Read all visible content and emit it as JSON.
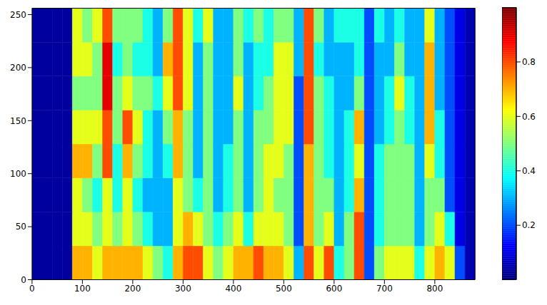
{
  "chart_data": {
    "type": "heatmap",
    "x_edges": [
      0,
      20,
      40,
      60,
      80,
      100,
      120,
      140,
      160,
      180,
      200,
      220,
      240,
      260,
      280,
      300,
      320,
      340,
      360,
      380,
      400,
      420,
      440,
      460,
      480,
      500,
      520,
      540,
      560,
      580,
      600,
      620,
      640,
      660,
      680,
      700,
      720,
      740,
      760,
      780,
      800,
      820,
      840,
      860,
      880
    ],
    "y_edges": [
      0,
      32,
      64,
      96,
      128,
      160,
      192,
      224,
      256
    ],
    "z": [
      [
        0.03,
        0.03,
        0.03,
        0.03,
        0.7,
        0.7,
        0.6,
        0.7,
        0.7,
        0.7,
        0.7,
        0.6,
        0.5,
        0.4,
        0.7,
        0.8,
        0.8,
        0.6,
        0.5,
        0.6,
        0.7,
        0.7,
        0.8,
        0.7,
        0.7,
        0.6,
        0.3,
        0.8,
        0.6,
        0.8,
        0.4,
        0.5,
        0.8,
        0.2,
        0.5,
        0.6,
        0.6,
        0.6,
        0.4,
        0.6,
        0.7,
        0.6,
        0.2,
        0.05
      ],
      [
        0.03,
        0.03,
        0.03,
        0.03,
        0.6,
        0.6,
        0.5,
        0.6,
        0.5,
        0.6,
        0.5,
        0.4,
        0.3,
        0.3,
        0.6,
        0.7,
        0.6,
        0.5,
        0.4,
        0.5,
        0.6,
        0.4,
        0.6,
        0.6,
        0.6,
        0.5,
        0.2,
        0.7,
        0.5,
        0.6,
        0.3,
        0.5,
        0.8,
        0.2,
        0.4,
        0.5,
        0.5,
        0.5,
        0.3,
        0.5,
        0.6,
        0.4,
        0.1,
        0.05
      ],
      [
        0.03,
        0.03,
        0.03,
        0.03,
        0.6,
        0.5,
        0.4,
        0.6,
        0.4,
        0.6,
        0.4,
        0.3,
        0.3,
        0.3,
        0.6,
        0.5,
        0.4,
        0.5,
        0.3,
        0.4,
        0.5,
        0.3,
        0.5,
        0.6,
        0.5,
        0.5,
        0.2,
        0.7,
        0.5,
        0.5,
        0.3,
        0.4,
        0.7,
        0.2,
        0.4,
        0.5,
        0.5,
        0.5,
        0.3,
        0.5,
        0.5,
        0.2,
        0.1,
        0.05
      ],
      [
        0.03,
        0.03,
        0.03,
        0.03,
        0.7,
        0.7,
        0.5,
        0.8,
        0.4,
        0.7,
        0.5,
        0.4,
        0.3,
        0.4,
        0.7,
        0.5,
        0.3,
        0.5,
        0.3,
        0.4,
        0.5,
        0.3,
        0.5,
        0.6,
        0.6,
        0.5,
        0.2,
        0.7,
        0.5,
        0.4,
        0.3,
        0.4,
        0.6,
        0.2,
        0.4,
        0.5,
        0.5,
        0.5,
        0.3,
        0.6,
        0.4,
        0.2,
        0.1,
        0.05
      ],
      [
        0.03,
        0.03,
        0.03,
        0.03,
        0.6,
        0.6,
        0.6,
        0.8,
        0.5,
        0.8,
        0.6,
        0.4,
        0.3,
        0.5,
        0.7,
        0.5,
        0.3,
        0.5,
        0.3,
        0.3,
        0.5,
        0.3,
        0.5,
        0.5,
        0.6,
        0.6,
        0.2,
        0.8,
        0.5,
        0.4,
        0.3,
        0.4,
        0.7,
        0.2,
        0.3,
        0.4,
        0.5,
        0.4,
        0.3,
        0.7,
        0.4,
        0.2,
        0.1,
        0.05
      ],
      [
        0.03,
        0.03,
        0.03,
        0.03,
        0.5,
        0.5,
        0.5,
        0.9,
        0.5,
        0.6,
        0.5,
        0.5,
        0.4,
        0.6,
        0.8,
        0.6,
        0.3,
        0.5,
        0.3,
        0.3,
        0.6,
        0.3,
        0.4,
        0.5,
        0.6,
        0.6,
        0.2,
        0.8,
        0.5,
        0.4,
        0.3,
        0.3,
        0.5,
        0.2,
        0.3,
        0.4,
        0.6,
        0.4,
        0.3,
        0.7,
        0.3,
        0.2,
        0.1,
        0.05
      ],
      [
        0.03,
        0.03,
        0.03,
        0.03,
        0.6,
        0.6,
        0.5,
        0.9,
        0.4,
        0.5,
        0.4,
        0.4,
        0.3,
        0.7,
        0.8,
        0.6,
        0.3,
        0.5,
        0.3,
        0.3,
        0.5,
        0.3,
        0.4,
        0.4,
        0.6,
        0.6,
        0.3,
        0.8,
        0.4,
        0.3,
        0.3,
        0.3,
        0.4,
        0.2,
        0.3,
        0.3,
        0.5,
        0.3,
        0.3,
        0.7,
        0.3,
        0.2,
        0.1,
        0.05
      ],
      [
        0.03,
        0.03,
        0.03,
        0.03,
        0.6,
        0.5,
        0.6,
        0.8,
        0.5,
        0.5,
        0.5,
        0.4,
        0.3,
        0.5,
        0.8,
        0.6,
        0.4,
        0.6,
        0.3,
        0.3,
        0.5,
        0.4,
        0.5,
        0.4,
        0.5,
        0.5,
        0.3,
        0.8,
        0.5,
        0.3,
        0.4,
        0.4,
        0.4,
        0.2,
        0.4,
        0.3,
        0.4,
        0.3,
        0.3,
        0.6,
        0.3,
        0.2,
        0.1,
        0.05
      ]
    ],
    "xlim": [
      0,
      880
    ],
    "xticks": [
      0,
      100,
      200,
      300,
      400,
      500,
      600,
      700,
      800
    ],
    "ylim": [
      0,
      256
    ],
    "yticks": [
      0,
      50,
      100,
      150,
      200,
      250
    ],
    "colorbar": {
      "range": [
        0,
        1
      ],
      "ticks": [
        0.2,
        0.4,
        0.6,
        0.8
      ]
    }
  }
}
